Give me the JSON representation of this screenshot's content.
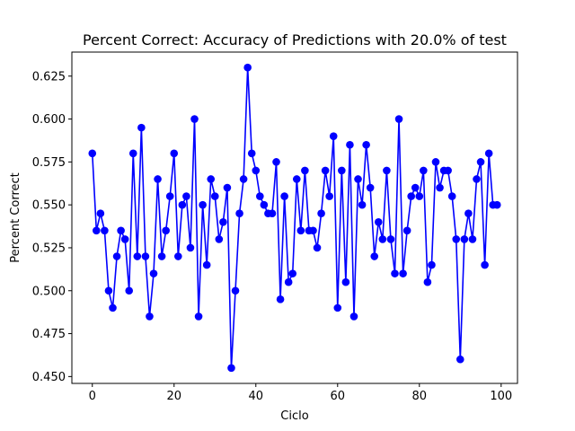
{
  "chart_data": {
    "type": "line",
    "title": "Percent Correct: Accuracy of Predictions with 20.0% of test",
    "xlabel": "Ciclo",
    "ylabel": "Percent Correct",
    "xlim": [
      -5,
      104
    ],
    "ylim": [
      0.446,
      0.639
    ],
    "xticks": [
      0,
      20,
      40,
      60,
      80,
      100
    ],
    "yticks": [
      0.45,
      0.475,
      0.5,
      0.525,
      0.55,
      0.575,
      0.6,
      0.625
    ],
    "ytick_labels": [
      "0.450",
      "0.475",
      "0.500",
      "0.525",
      "0.550",
      "0.575",
      "0.600",
      "0.625"
    ],
    "grid": false,
    "marker": "circle",
    "series": [
      {
        "color": "#0000ff",
        "x": [
          0,
          1,
          2,
          3,
          4,
          5,
          6,
          7,
          8,
          9,
          10,
          11,
          12,
          13,
          14,
          15,
          16,
          17,
          18,
          19,
          20,
          21,
          22,
          23,
          24,
          25,
          26,
          27,
          28,
          29,
          30,
          31,
          32,
          33,
          34,
          35,
          36,
          37,
          38,
          39,
          40,
          41,
          42,
          43,
          44,
          45,
          46,
          47,
          48,
          49,
          50,
          51,
          52,
          53,
          54,
          55,
          56,
          57,
          58,
          59,
          60,
          61,
          62,
          63,
          64,
          65,
          66,
          67,
          68,
          69,
          70,
          71,
          72,
          73,
          74,
          75,
          76,
          77,
          78,
          79,
          80,
          81,
          82,
          83,
          84,
          85,
          86,
          87,
          88,
          89,
          90,
          91,
          92,
          93,
          94,
          95,
          96,
          97,
          98,
          99
        ],
        "values": [
          0.58,
          0.535,
          0.545,
          0.535,
          0.5,
          0.49,
          0.52,
          0.535,
          0.53,
          0.5,
          0.58,
          0.52,
          0.595,
          0.52,
          0.485,
          0.51,
          0.565,
          0.52,
          0.535,
          0.555,
          0.58,
          0.52,
          0.55,
          0.555,
          0.525,
          0.6,
          0.485,
          0.55,
          0.515,
          0.565,
          0.555,
          0.53,
          0.54,
          0.56,
          0.455,
          0.5,
          0.545,
          0.565,
          0.63,
          0.58,
          0.57,
          0.555,
          0.55,
          0.545,
          0.545,
          0.575,
          0.495,
          0.555,
          0.505,
          0.51,
          0.565,
          0.535,
          0.57,
          0.535,
          0.535,
          0.525,
          0.545,
          0.57,
          0.555,
          0.59,
          0.49,
          0.57,
          0.505,
          0.585,
          0.485,
          0.565,
          0.55,
          0.585,
          0.56,
          0.52,
          0.54,
          0.53,
          0.57,
          0.53,
          0.51,
          0.6,
          0.51,
          0.535,
          0.555,
          0.56,
          0.555,
          0.57,
          0.505,
          0.515,
          0.575,
          0.56,
          0.57,
          0.57,
          0.555,
          0.53,
          0.46,
          0.53,
          0.545,
          0.53,
          0.565,
          0.575,
          0.515,
          0.58,
          0.55,
          0.55
        ]
      }
    ]
  }
}
